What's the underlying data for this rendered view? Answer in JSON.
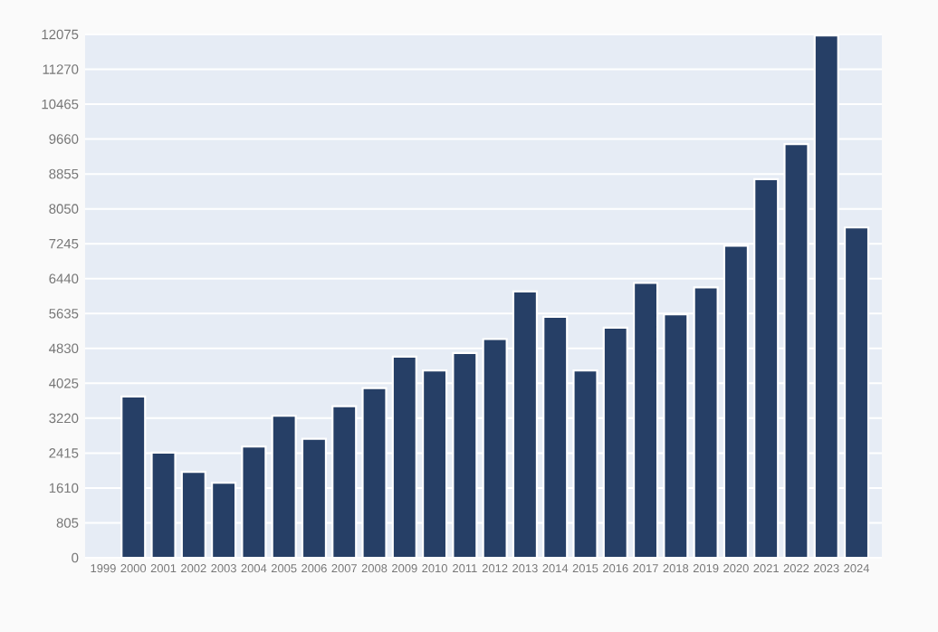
{
  "chart_data": {
    "type": "bar",
    "categories": [
      "1999",
      "2000",
      "2001",
      "2002",
      "2003",
      "2004",
      "2005",
      "2006",
      "2007",
      "2008",
      "2009",
      "2010",
      "2011",
      "2012",
      "2013",
      "2014",
      "2015",
      "2016",
      "2017",
      "2018",
      "2019",
      "2020",
      "2021",
      "2022",
      "2023",
      "2024"
    ],
    "values": [
      null,
      3720,
      2425,
      1980,
      1730,
      2565,
      3275,
      2745,
      3495,
      3915,
      4640,
      4320,
      4725,
      5045,
      6145,
      5560,
      4320,
      5310,
      6340,
      5615,
      6240,
      7200,
      8735,
      9545,
      12050,
      7620
    ],
    "color": "#263f66",
    "ylim": [
      0,
      12075
    ],
    "yticks": [
      0,
      805,
      1610,
      2415,
      3220,
      4025,
      4830,
      5635,
      6440,
      7245,
      8050,
      8855,
      9660,
      10465,
      11270,
      12075
    ],
    "grid": "y"
  }
}
